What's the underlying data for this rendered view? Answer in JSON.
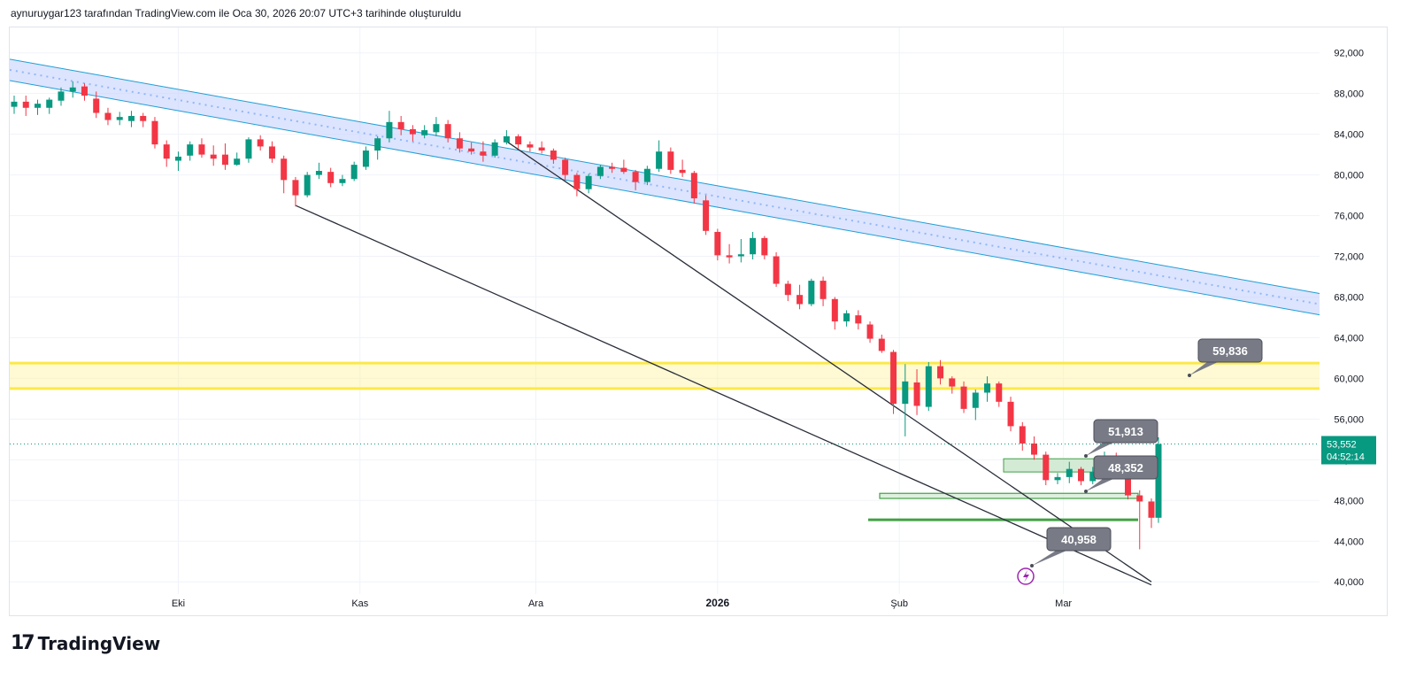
{
  "header": {
    "text": "aynuruygar123 tarafından TradingView.com ile Oca 30, 2026 20:07 UTC+3 tarihinde oluşturuldu"
  },
  "logo": {
    "text": "TradingView",
    "icon": "tradingview-logo-icon"
  },
  "colors": {
    "up": "#089981",
    "down": "#f23645",
    "channel_fill": "#c7d2fe",
    "channel_line": "#1e9fd6",
    "zone_yellow": "#fff59d",
    "zone_yellow_line": "#fbe94a",
    "green_zone": "#c8e6c9",
    "green_line": "#43a047",
    "callout": "#787b86",
    "trend": "#2a2e39"
  },
  "chart_data": {
    "type": "candlestick",
    "y_axis": {
      "ticks": [
        40000,
        44000,
        48000,
        52000,
        56000,
        60000,
        64000,
        68000,
        72000,
        76000,
        80000,
        84000,
        88000,
        92000
      ],
      "tick_labels": [
        "40,000",
        "44,000",
        "48,000",
        "52,000",
        "56,000",
        "60,000",
        "64,000",
        "68,000",
        "72,000",
        "76,000",
        "80,000",
        "84,000",
        "88,000",
        "92,000"
      ],
      "range": [
        38800,
        94500
      ]
    },
    "x_axis": {
      "range": [
        "2025-09-03",
        "2026-03-16"
      ],
      "ticks": [
        {
          "date": "2025-10-01",
          "label": "Eki",
          "bold": false
        },
        {
          "date": "2025-11-01",
          "label": "Kas",
          "bold": false
        },
        {
          "date": "2025-12-01",
          "label": "Ara",
          "bold": false
        },
        {
          "date": "2026-01-01",
          "label": "2026",
          "bold": true
        },
        {
          "date": "2026-02-01",
          "label": "Şub",
          "bold": false
        },
        {
          "date": "2026-03-01",
          "label": "Mar",
          "bold": false
        }
      ]
    },
    "candles": [
      [
        "2025-09-03",
        86700,
        87800,
        86000,
        87200
      ],
      [
        "2025-09-05",
        87200,
        87800,
        85800,
        86600
      ],
      [
        "2025-09-07",
        86600,
        87400,
        85900,
        87000
      ],
      [
        "2025-09-09",
        86600,
        87600,
        86000,
        87400
      ],
      [
        "2025-09-11",
        87300,
        88600,
        86800,
        88200
      ],
      [
        "2025-09-13",
        88200,
        89200,
        87600,
        88600
      ],
      [
        "2025-09-15",
        88700,
        89000,
        87300,
        87800
      ],
      [
        "2025-09-17",
        87500,
        88200,
        85600,
        86100
      ],
      [
        "2025-09-19",
        86100,
        86600,
        84900,
        85400
      ],
      [
        "2025-09-21",
        85400,
        86200,
        84900,
        85700
      ],
      [
        "2025-09-23",
        85300,
        86300,
        84700,
        85800
      ],
      [
        "2025-09-25",
        85800,
        86100,
        84700,
        85300
      ],
      [
        "2025-09-27",
        85300,
        85700,
        82600,
        83000
      ],
      [
        "2025-09-29",
        83000,
        83400,
        80800,
        81600
      ],
      [
        "2025-10-01",
        81400,
        82300,
        80400,
        81800
      ],
      [
        "2025-10-03",
        81900,
        83300,
        81400,
        83000
      ],
      [
        "2025-10-05",
        83000,
        83600,
        81700,
        82000
      ],
      [
        "2025-10-07",
        82000,
        82900,
        80900,
        81600
      ],
      [
        "2025-10-09",
        82000,
        83100,
        80500,
        81000
      ],
      [
        "2025-10-11",
        81000,
        82200,
        80900,
        81600
      ],
      [
        "2025-10-13",
        81600,
        83700,
        81200,
        83500
      ],
      [
        "2025-10-15",
        83500,
        83900,
        82400,
        82800
      ],
      [
        "2025-10-17",
        82800,
        83300,
        81200,
        81600
      ],
      [
        "2025-10-19",
        81600,
        81900,
        78200,
        79500
      ],
      [
        "2025-10-21",
        79500,
        79800,
        76900,
        78000
      ],
      [
        "2025-10-23",
        78000,
        80300,
        77800,
        80000
      ],
      [
        "2025-10-25",
        80000,
        81200,
        79600,
        80400
      ],
      [
        "2025-10-27",
        80300,
        80700,
        78800,
        79200
      ],
      [
        "2025-10-29",
        79200,
        80000,
        78900,
        79600
      ],
      [
        "2025-10-31",
        79600,
        81300,
        79400,
        81000
      ],
      [
        "2025-11-02",
        80800,
        82800,
        80500,
        82400
      ],
      [
        "2025-11-04",
        82400,
        83800,
        81500,
        83600
      ],
      [
        "2025-11-06",
        83600,
        86300,
        83200,
        85200
      ],
      [
        "2025-11-08",
        85200,
        85800,
        83900,
        84500
      ],
      [
        "2025-11-10",
        84500,
        84900,
        83300,
        84000
      ],
      [
        "2025-11-12",
        83900,
        84900,
        83600,
        84400
      ],
      [
        "2025-11-14",
        84200,
        85700,
        83800,
        85000
      ],
      [
        "2025-11-16",
        85000,
        85400,
        83200,
        83600
      ],
      [
        "2025-11-18",
        83600,
        84200,
        82200,
        82600
      ],
      [
        "2025-11-20",
        82600,
        83200,
        82000,
        82300
      ],
      [
        "2025-11-22",
        82300,
        83300,
        81300,
        81900
      ],
      [
        "2025-11-24",
        81900,
        83500,
        81700,
        83200
      ],
      [
        "2025-11-26",
        83200,
        84400,
        83000,
        83800
      ],
      [
        "2025-11-28",
        83800,
        84000,
        82600,
        83000
      ],
      [
        "2025-11-30",
        83000,
        83300,
        82300,
        82700
      ],
      [
        "2025-12-02",
        82700,
        83300,
        82100,
        82400
      ],
      [
        "2025-12-04",
        82400,
        82600,
        81100,
        81500
      ],
      [
        "2025-12-06",
        81500,
        81700,
        79500,
        80000
      ],
      [
        "2025-12-08",
        80000,
        80200,
        77900,
        78600
      ],
      [
        "2025-12-10",
        78600,
        80100,
        78200,
        79900
      ],
      [
        "2025-12-12",
        79900,
        81000,
        79600,
        80800
      ],
      [
        "2025-12-14",
        80800,
        81200,
        80200,
        80600
      ],
      [
        "2025-12-16",
        80700,
        81500,
        80100,
        80300
      ],
      [
        "2025-12-18",
        80300,
        80500,
        78500,
        79300
      ],
      [
        "2025-12-20",
        79300,
        80900,
        79000,
        80600
      ],
      [
        "2025-12-22",
        80600,
        83400,
        80300,
        82300
      ],
      [
        "2025-12-24",
        82300,
        82700,
        80100,
        80500
      ],
      [
        "2025-12-26",
        80500,
        81500,
        79800,
        80200
      ],
      [
        "2025-12-28",
        80200,
        80400,
        77200,
        77700
      ],
      [
        "2025-12-30",
        77500,
        78000,
        74100,
        74500
      ],
      [
        "2026-01-01",
        74400,
        74700,
        71600,
        72100
      ],
      [
        "2026-01-03",
        72100,
        73200,
        71300,
        71900
      ],
      [
        "2026-01-05",
        72000,
        73700,
        71400,
        72200
      ],
      [
        "2026-01-07",
        72200,
        74400,
        71700,
        73800
      ],
      [
        "2026-01-09",
        73800,
        74000,
        71700,
        72100
      ],
      [
        "2026-01-11",
        72000,
        72400,
        69000,
        69300
      ],
      [
        "2026-01-13",
        69300,
        69600,
        67600,
        68200
      ],
      [
        "2026-01-15",
        68200,
        69200,
        66800,
        67300
      ],
      [
        "2026-01-17",
        67300,
        69800,
        67100,
        69600
      ],
      [
        "2026-01-19",
        69600,
        70000,
        67100,
        67800
      ],
      [
        "2026-01-21",
        67800,
        68000,
        64800,
        65600
      ],
      [
        "2026-01-23",
        65600,
        66700,
        65100,
        66400
      ],
      [
        "2026-01-25",
        66200,
        66700,
        64800,
        65400
      ],
      [
        "2026-01-27",
        65300,
        65600,
        63500,
        63900
      ],
      [
        "2026-01-29",
        63900,
        64300,
        62500,
        62700
      ],
      [
        "2026-01-31",
        62600,
        62800,
        56500,
        57500
      ],
      [
        "2026-02-02",
        57500,
        61400,
        54300,
        59700
      ],
      [
        "2026-02-04",
        59600,
        60900,
        56400,
        57300
      ],
      [
        "2026-02-06",
        57200,
        61600,
        56800,
        61200
      ],
      [
        "2026-02-08",
        61200,
        61800,
        59400,
        60000
      ],
      [
        "2026-02-10",
        60000,
        60200,
        58500,
        59200
      ],
      [
        "2026-02-12",
        59200,
        59700,
        56600,
        57000
      ],
      [
        "2026-02-14",
        57100,
        58900,
        55900,
        58600
      ],
      [
        "2026-02-16",
        58600,
        60200,
        57700,
        59500
      ],
      [
        "2026-02-18",
        59500,
        59700,
        57200,
        57700
      ],
      [
        "2026-02-20",
        57700,
        58200,
        54800,
        55300
      ],
      [
        "2026-02-22",
        55300,
        55700,
        52900,
        53600
      ],
      [
        "2026-02-24",
        53600,
        54300,
        52000,
        52500
      ],
      [
        "2026-02-26",
        52500,
        52800,
        49500,
        50000
      ],
      [
        "2026-02-28",
        50000,
        50700,
        49600,
        50300
      ],
      [
        "2026-03-02",
        50300,
        51800,
        49700,
        51100
      ],
      [
        "2026-03-04",
        51100,
        51300,
        49500,
        49900
      ],
      [
        "2026-03-06",
        49900,
        51300,
        49600,
        50800
      ],
      [
        "2026-03-08",
        50800,
        52800,
        50400,
        52200
      ],
      [
        "2026-03-10",
        52200,
        52700,
        50700,
        51000
      ],
      [
        "2026-03-12",
        50900,
        51600,
        48100,
        48500
      ],
      [
        "2026-03-14",
        48500,
        49000,
        43200,
        47900
      ],
      [
        "2026-03-16",
        47900,
        48200,
        45300,
        46300
      ]
    ],
    "candle_dates_note_free": true,
    "channel": {
      "upper": [
        [
          "2025-09-03",
          91300
        ],
        [
          "2026-03-16",
          71300
        ]
      ],
      "lower": [
        [
          "2025-09-03",
          89200
        ],
        [
          "2026-03-16",
          69200
        ]
      ]
    },
    "trend_lines": [
      [
        [
          "2025-10-21",
          77000
        ],
        [
          "2026-03-16",
          39700
        ]
      ],
      [
        [
          "2025-11-26",
          83300
        ],
        [
          "2026-03-16",
          40000
        ]
      ]
    ],
    "yellow_zone": [
      59000,
      61500
    ],
    "green_zones": [
      [
        50800,
        52100
      ],
      [
        48200,
        48700
      ]
    ],
    "green_line": 46100,
    "current_price": {
      "value": 53552,
      "label": "53,552",
      "countdown": "04:52:14"
    },
    "callouts": [
      {
        "label": "59,836",
        "value": 59836
      },
      {
        "label": "51,913",
        "value": 51913
      },
      {
        "label": "48,352",
        "value": 48352
      },
      {
        "label": "40,958",
        "value": 40958
      }
    ]
  }
}
